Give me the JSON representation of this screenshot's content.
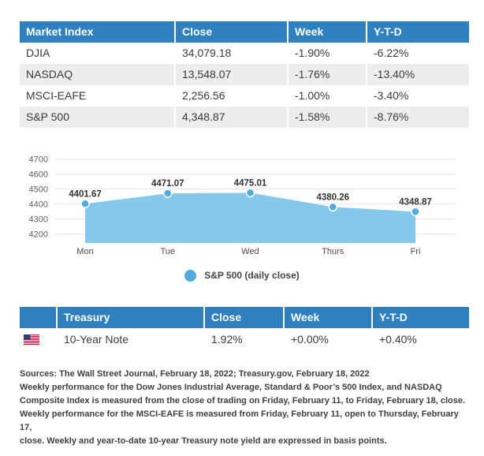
{
  "colors": {
    "header_blue": "#2e80c1",
    "row_alt_gray": "#ededed",
    "area_fill": "#85c8ec",
    "marker_fill": "#52aadf",
    "grid_line": "#e5e5e5",
    "tick_text": "#606060",
    "data_label_text": "#333333"
  },
  "market_table": {
    "headers": [
      "Market Index",
      "Close",
      "Week",
      "Y-T-D"
    ],
    "rows": [
      {
        "index": "DJIA",
        "close": "34,079.18",
        "week": "-1.90%",
        "ytd": "-6.22%"
      },
      {
        "index": "NASDAQ",
        "close": "13,548.07",
        "week": "-1.76%",
        "ytd": "-13.40%"
      },
      {
        "index": "MSCI-EAFE",
        "close": "2,256.56",
        "week": "-1.00%",
        "ytd": "-3.40%"
      },
      {
        "index": "S&P 500",
        "close": "4,348.87",
        "week": "-1.58%",
        "ytd": "-8.76%"
      }
    ]
  },
  "chart_data": {
    "type": "area",
    "title": "",
    "categories": [
      "Mon",
      "Tue",
      "Wed",
      "Thurs",
      "Fri"
    ],
    "values": [
      4401.67,
      4471.07,
      4475.01,
      4380.26,
      4348.87
    ],
    "data_labels": [
      "4401.67",
      "4471.07",
      "4475.01",
      "4380.26",
      "4348.87"
    ],
    "y_ticks": [
      4200,
      4300,
      4400,
      4500,
      4600,
      4700
    ],
    "ylim": [
      4140,
      4760
    ],
    "xlabel": "",
    "ylabel": "",
    "grid": true,
    "legend": "S&P 500 (daily close)",
    "legend_position": "bottom"
  },
  "treasury_table": {
    "headers": [
      "",
      "Treasury",
      "Close",
      "Week",
      "Y-T-D"
    ],
    "rows": [
      {
        "flag": "us-flag",
        "name": "10-Year Note",
        "close": "1.92%",
        "week": "+0.00%",
        "ytd": "+0.40%"
      }
    ]
  },
  "footer": {
    "lines": [
      "Sources: The Wall Street Journal, February 18, 2022; Treasury.gov, February 18, 2022",
      "Weekly performance for the Dow Jones Industrial Average, Standard & Poor’s 500 Index, and NASDAQ",
      "Composite Index is measured from the close of trading on Friday, February 11, to Friday, February 18, close.",
      "Weekly performance for the MSCI-EAFE is measured from Friday, February 11, open to Thursday, February 17,",
      "close. Weekly and year-to-date 10-year Treasury note yield are expressed in basis points."
    ]
  }
}
